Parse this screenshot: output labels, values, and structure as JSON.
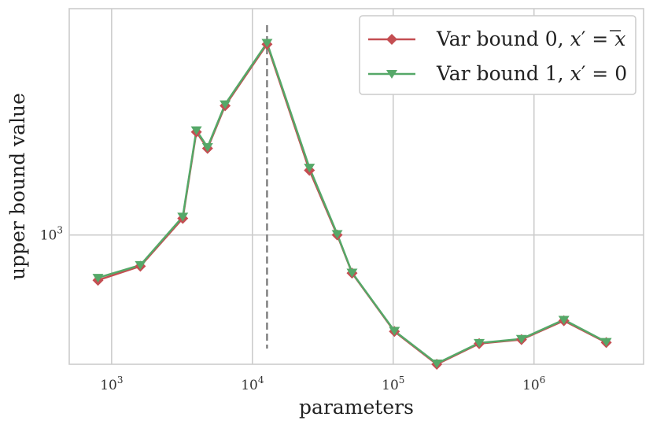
{
  "chart_data": {
    "type": "line",
    "xlabel": "parameters",
    "ylabel": "upper bound value",
    "x_scale": "log",
    "y_scale": "log",
    "xlim": [
      500,
      6000000
    ],
    "ylim": [
      510,
      3250
    ],
    "grid": true,
    "legend_position": "top-right",
    "x_ticks": [
      {
        "value": 1000,
        "base": "10",
        "exp": "3"
      },
      {
        "value": 10000,
        "base": "10",
        "exp": "4"
      },
      {
        "value": 100000,
        "base": "10",
        "exp": "5"
      },
      {
        "value": 1000000,
        "base": "10",
        "exp": "6"
      }
    ],
    "y_ticks": [
      {
        "value": 1000,
        "base": "10",
        "exp": "3"
      }
    ],
    "interpolation_threshold": 12700,
    "series": [
      {
        "name": "Var bound 0, x′ = x̄",
        "color": "#c44e52",
        "marker": "diamond",
        "x": [
          800,
          1600,
          3200,
          4000,
          4800,
          6400,
          12700,
          25400,
          40000,
          51000,
          102000,
          204000,
          408000,
          815000,
          1630000,
          3260000
        ],
        "y": [
          790,
          850,
          1090,
          1710,
          1570,
          1960,
          2700,
          1400,
          1000,
          820,
          605,
          510,
          568,
          580,
          640,
          571
        ]
      },
      {
        "name": "Var bound 1, x′ = 0",
        "color": "#55a868",
        "marker": "triangle-down",
        "x": [
          800,
          1600,
          3200,
          4000,
          4800,
          6400,
          12700,
          25400,
          40000,
          51000,
          102000,
          204000,
          408000,
          815000,
          1630000,
          3260000
        ],
        "y": [
          800,
          855,
          1100,
          1725,
          1580,
          1975,
          2720,
          1420,
          1005,
          822,
          607,
          512,
          570,
          582,
          643,
          573
        ]
      }
    ]
  }
}
